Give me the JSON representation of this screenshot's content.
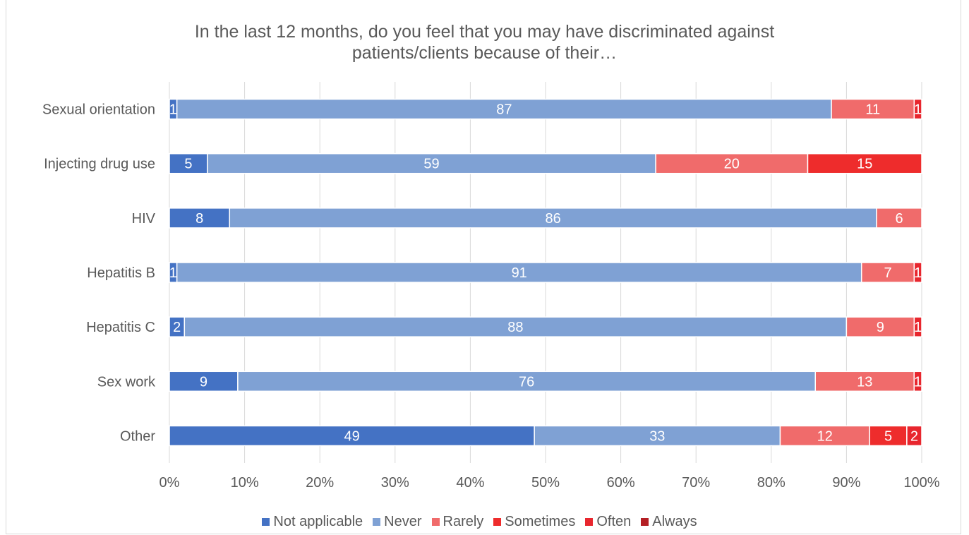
{
  "chart_data": {
    "type": "bar",
    "orientation": "horizontal",
    "stacked": "percent",
    "title": "In the last 12 months, do you feel that you may have discriminated against patients/clients because of their…",
    "categories": [
      "Sexual orientation",
      "Injecting drug use",
      "HIV",
      "Hepatitis B",
      "Hepatitis C",
      "Sex work",
      "Other"
    ],
    "series": [
      {
        "name": "Not applicable",
        "color": "#4472c4",
        "values": [
          1,
          5,
          8,
          1,
          2,
          9,
          49
        ]
      },
      {
        "name": "Never",
        "color": "#7fa1d4",
        "values": [
          87,
          59,
          86,
          91,
          88,
          76,
          33
        ]
      },
      {
        "name": "Rarely",
        "color": "#f06b6b",
        "values": [
          11,
          20,
          6,
          7,
          9,
          13,
          12
        ]
      },
      {
        "name": "Sometimes",
        "color": "#ee2c2c",
        "values": [
          0,
          15,
          0,
          0,
          0,
          0,
          5
        ]
      },
      {
        "name": "Often",
        "color": "#e8262e",
        "values": [
          1,
          0,
          0,
          1,
          1,
          1,
          2
        ]
      },
      {
        "name": "Always",
        "color": "#b41f24",
        "values": [
          0,
          0,
          0,
          0,
          0,
          0,
          0
        ]
      }
    ],
    "xticks": [
      "0%",
      "10%",
      "20%",
      "30%",
      "40%",
      "50%",
      "60%",
      "70%",
      "80%",
      "90%",
      "100%"
    ],
    "xlim": [
      0,
      100
    ],
    "grid": true,
    "legend": "bottom"
  }
}
